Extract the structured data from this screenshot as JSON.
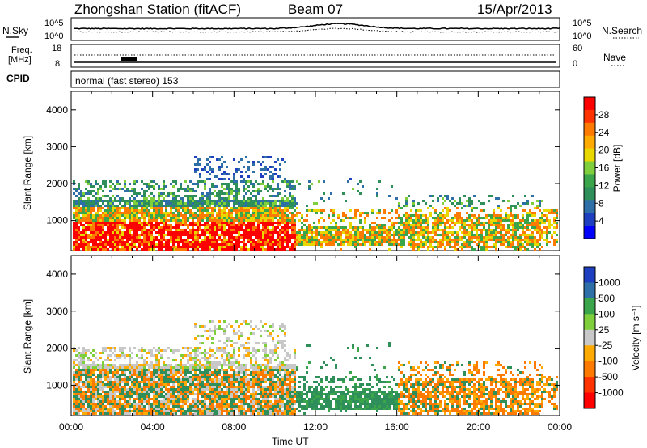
{
  "header": {
    "station": "Zhongshan Station (fitACF)",
    "beam": "Beam 07",
    "date": "15/Apr/2013"
  },
  "noise_panel": {
    "left_label": "N.Sky",
    "right_label": "N.Search",
    "left_ticks": [
      "10^5",
      "10^0"
    ],
    "right_ticks": [
      "10^5",
      "10^0"
    ]
  },
  "freq_panel": {
    "left_label_1": "Freq.",
    "left_label_2": "[MHz]",
    "right_label": "Nave",
    "left_ticks": [
      "18",
      "8"
    ],
    "right_ticks": [
      "60",
      "0"
    ]
  },
  "cpid": {
    "label": "CPID",
    "text": "normal (fast stereo) 153"
  },
  "chart_data": [
    {
      "type": "heatmap",
      "name": "power",
      "ylabel": "Slant Range [km]",
      "xlabel": "",
      "colorbar_label": "Power [dB]",
      "colorbar_ticks": [
        "28",
        "24",
        "20",
        "16",
        "12",
        "8",
        "4"
      ],
      "colorbar_colors": [
        "#ff0000",
        "#ff3300",
        "#ff7a00",
        "#ffaa00",
        "#e8d800",
        "#7fcf3c",
        "#3aa54a",
        "#2f8f5a",
        "#2e6fa8",
        "#1e3fbf",
        "#0000ff"
      ],
      "y_ticks": [
        "4000",
        "3000",
        "2000",
        "1000"
      ],
      "ylim": [
        180,
        4500
      ]
    },
    {
      "type": "heatmap",
      "name": "velocity",
      "ylabel": "Slant Range [km]",
      "xlabel": "Time UT",
      "colorbar_label": "Velocity [m s⁻¹]",
      "colorbar_ticks": [
        "1000",
        "500",
        "100",
        "25",
        "-25",
        "-100",
        "-500",
        "-1000"
      ],
      "colorbar_colors": [
        "#1e3fbf",
        "#2e6fa8",
        "#3aa54a",
        "#7fcf3c",
        "#c8c8c8",
        "#ffaa00",
        "#ff7a00",
        "#ff3300",
        "#ff0000"
      ],
      "y_ticks": [
        "4000",
        "3000",
        "2000",
        "1000"
      ],
      "x_ticks": [
        "00:00",
        "04:00",
        "08:00",
        "12:00",
        "16:00",
        "20:00",
        "00:00"
      ],
      "ylim": [
        180,
        4500
      ]
    }
  ]
}
